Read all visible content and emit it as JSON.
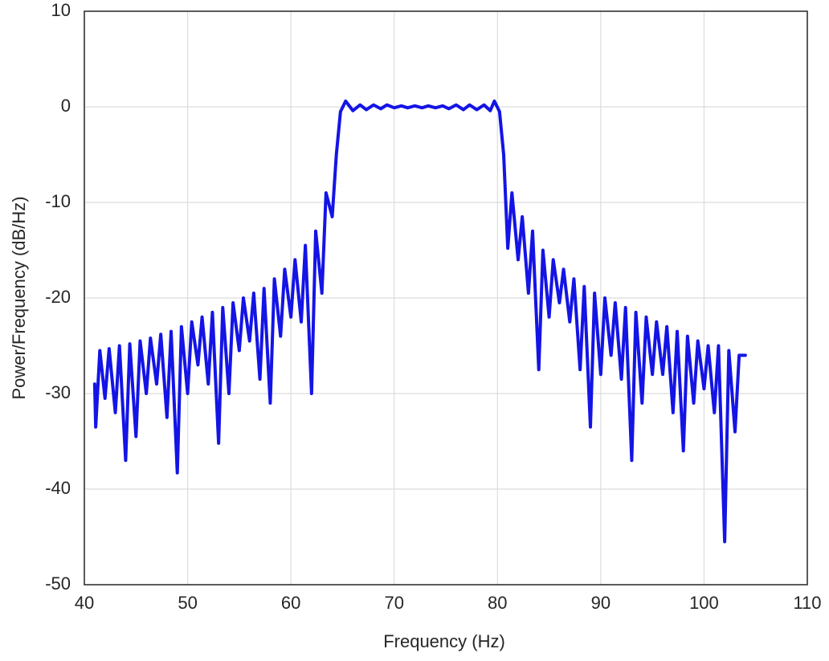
{
  "chart_data": {
    "type": "line",
    "xlabel": "Frequency (Hz)",
    "ylabel": "Power/Frequency (dB/Hz)",
    "color": "#1414e6",
    "grid": true,
    "xlim": [
      40,
      110
    ],
    "ylim": [
      -50,
      10
    ],
    "xticks": [
      40,
      50,
      60,
      70,
      80,
      90,
      100,
      110
    ],
    "yticks": [
      -50,
      -40,
      -30,
      -20,
      -10,
      0,
      10
    ],
    "x": [
      41,
      41.1,
      41.5,
      42,
      42.4,
      43,
      43.4,
      44,
      44.4,
      45,
      45.4,
      46,
      46.4,
      47,
      47.4,
      48,
      48.4,
      49,
      49.4,
      50,
      50.4,
      51,
      51.4,
      52,
      52.4,
      53,
      53.4,
      54,
      54.4,
      55,
      55.4,
      56,
      56.4,
      57,
      57.4,
      58,
      58.4,
      59,
      59.4,
      60,
      60.4,
      61,
      61.4,
      62,
      62.4,
      63,
      63.4,
      64,
      64.4,
      64.8,
      65.3,
      66,
      66.7,
      67.3,
      68,
      68.7,
      69.3,
      70,
      70.7,
      71.3,
      72,
      72.7,
      73.3,
      74,
      74.7,
      75.3,
      76,
      76.7,
      77.3,
      78,
      78.7,
      79.3,
      79.7,
      80.2,
      80.6,
      81,
      81.4,
      82,
      82.4,
      83,
      83.4,
      84,
      84.4,
      85,
      85.4,
      86,
      86.4,
      87,
      87.4,
      88,
      88.4,
      89,
      89.4,
      90,
      90.4,
      91,
      91.4,
      92,
      92.4,
      93,
      93.4,
      94,
      94.4,
      95,
      95.4,
      96,
      96.4,
      97,
      97.4,
      98,
      98.4,
      99,
      99.4,
      100,
      100.4,
      101,
      101.4,
      102,
      102.4,
      103,
      103.4,
      104
    ],
    "values": [
      -29,
      -33.5,
      -25.5,
      -30.5,
      -25.3,
      -32,
      -25,
      -37,
      -24.8,
      -34.5,
      -24.5,
      -30,
      -24.2,
      -29,
      -23.8,
      -32.5,
      -23.5,
      -38.3,
      -23,
      -30,
      -22.5,
      -27,
      -22,
      -29,
      -21.5,
      -35.2,
      -21,
      -30,
      -20.5,
      -25.5,
      -20,
      -24.5,
      -19.5,
      -28.5,
      -19,
      -31,
      -18,
      -24,
      -17,
      -22,
      -16,
      -22.5,
      -14.5,
      -30,
      -13,
      -19.5,
      -9,
      -11.5,
      -5,
      -0.5,
      0.6,
      -0.4,
      0.2,
      -0.3,
      0.2,
      -0.2,
      0.2,
      -0.1,
      0.1,
      -0.1,
      0.1,
      -0.1,
      0.1,
      -0.1,
      0.1,
      -0.2,
      0.2,
      -0.3,
      0.2,
      -0.3,
      0.2,
      -0.4,
      0.6,
      -0.5,
      -5,
      -14.8,
      -9,
      -16,
      -11.5,
      -19.5,
      -13,
      -27.5,
      -15,
      -22,
      -16,
      -20.5,
      -17,
      -22.5,
      -18,
      -27.5,
      -18.8,
      -33.5,
      -19.5,
      -28,
      -20,
      -26,
      -20.5,
      -28.5,
      -21,
      -37,
      -21.5,
      -31,
      -22,
      -28,
      -22.5,
      -28,
      -23,
      -32,
      -23.5,
      -36,
      -24,
      -31,
      -24.5,
      -29.5,
      -25,
      -32,
      -25,
      -45.5,
      -25.5,
      -34,
      -26,
      -26
    ]
  }
}
